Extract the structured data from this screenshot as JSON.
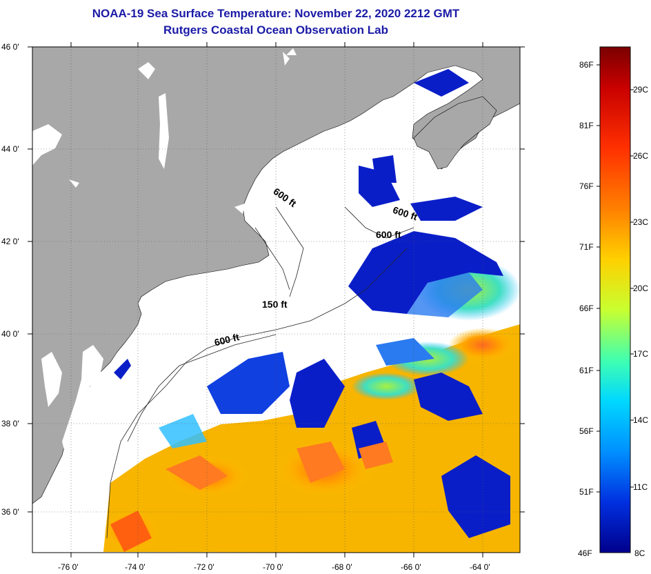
{
  "header": {
    "title": "NOAA-19 Sea Surface Temperature:  November 22, 2020 2212 GMT",
    "subtitle": "Rutgers Coastal Ocean Observation Lab"
  },
  "axes": {
    "lat_labels": [
      "46 0'",
      "44 0'",
      "42 0'",
      "40 0'",
      "38 0'",
      "36 0'"
    ],
    "lon_labels": [
      "-76 0'",
      "-74 0'",
      "-72 0'",
      "-70 0'",
      "-68 0'",
      "-66 0'",
      "-64 0'"
    ]
  },
  "depth_contours": [
    "600 ft",
    "600 ft",
    "600 ft",
    "150 ft",
    "600 ft"
  ],
  "colorbar": {
    "fahrenheit": [
      "86F",
      "81F",
      "76F",
      "71F",
      "66F",
      "61F",
      "56F",
      "51F",
      "46F"
    ],
    "celsius": [
      "29C",
      "26C",
      "23C",
      "20C",
      "17C",
      "14C",
      "11C",
      "8C"
    ],
    "colors": [
      "#7a0000",
      "#c80000",
      "#ff3000",
      "#ff8000",
      "#ffd000",
      "#c8ff30",
      "#40ffb0",
      "#00d8ff",
      "#0090ff",
      "#0030e0",
      "#00008c"
    ]
  },
  "colors": {
    "land": "#a8a8a8",
    "cloud": "#ffffff",
    "title": "#1a1aa6"
  }
}
